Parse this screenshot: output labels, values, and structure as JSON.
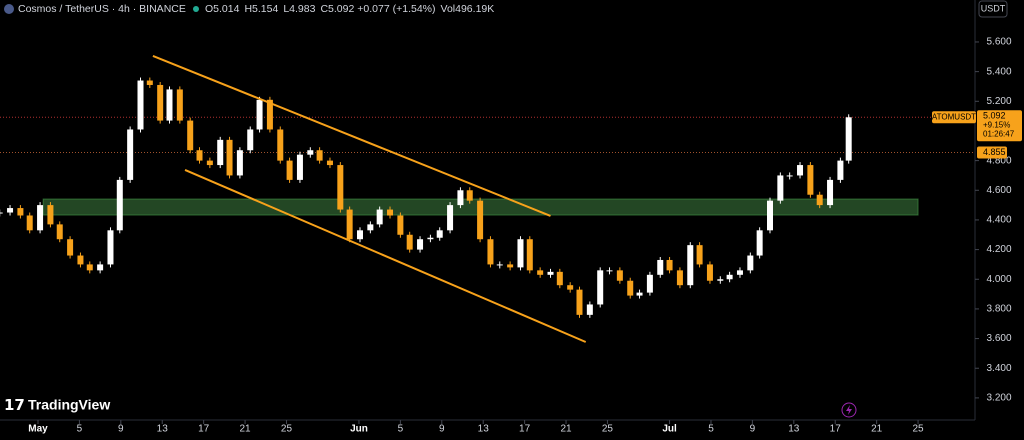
{
  "chart_data": {
    "type": "candlestick",
    "header": {
      "symbol": "Cosmos / TetherUS · 4h · BINANCE",
      "legend": [
        "O5.014",
        "H5.154",
        "L4.983",
        "C5.092",
        "+0.077 (+1.54%)",
        "Vol496.19K"
      ]
    },
    "currency": "USDT",
    "brand": "TradingView",
    "xlim": [
      -2.67,
      91.5
    ],
    "ylim": [
      3.051,
      5.883
    ],
    "xticks": [
      {
        "value": 1,
        "label": "May"
      },
      {
        "value": 5,
        "label": "5"
      },
      {
        "value": 9,
        "label": "9"
      },
      {
        "value": 13,
        "label": "13"
      },
      {
        "value": 17,
        "label": "17"
      },
      {
        "value": 21,
        "label": "21"
      },
      {
        "value": 25,
        "label": "25"
      },
      {
        "value": 32,
        "label": "Jun"
      },
      {
        "value": 36,
        "label": "5"
      },
      {
        "value": 40,
        "label": "9"
      },
      {
        "value": 44,
        "label": "13"
      },
      {
        "value": 48,
        "label": "17"
      },
      {
        "value": 52,
        "label": "21"
      },
      {
        "value": 56,
        "label": "25"
      },
      {
        "value": 62,
        "label": "Jul"
      },
      {
        "value": 66,
        "label": "5"
      },
      {
        "value": 70,
        "label": "9"
      },
      {
        "value": 74,
        "label": "13"
      },
      {
        "value": 78,
        "label": "17"
      },
      {
        "value": 82,
        "label": "21"
      },
      {
        "value": 86,
        "label": "25"
      }
    ],
    "yticks": [
      {
        "value": 5.6,
        "label": "5.600"
      },
      {
        "value": 5.4,
        "label": "5.400"
      },
      {
        "value": 5.2,
        "label": "5.200"
      },
      {
        "value": 4.8,
        "label": "4.800"
      },
      {
        "value": 4.6,
        "label": "4.600"
      },
      {
        "value": 4.4,
        "label": "4.400"
      },
      {
        "value": 4.2,
        "label": "4.200"
      },
      {
        "value": 4.0,
        "label": "4.000"
      },
      {
        "value": 3.8,
        "label": "3.800"
      },
      {
        "value": 3.6,
        "label": "3.600"
      },
      {
        "value": 3.4,
        "label": "3.400"
      },
      {
        "value": 3.2,
        "label": "3.200"
      }
    ],
    "series": [
      {
        "name": "ATOMUSDT",
        "up_color": "#ffffff",
        "down_color": "#f7a21b",
        "x": [
          -2.7,
          -1.7,
          -0.7,
          0.2,
          1.2,
          2.2,
          3.1,
          4.1,
          5.1,
          6.0,
          7.0,
          8.0,
          8.9,
          9.9,
          10.9,
          11.8,
          12.8,
          13.7,
          14.7,
          15.7,
          16.6,
          17.6,
          18.6,
          19.5,
          20.5,
          21.5,
          22.4,
          23.4,
          24.4,
          25.3,
          26.3,
          27.3,
          28.2,
          29.2,
          30.2,
          31.1,
          32.1,
          33.1,
          34.0,
          35.0,
          36.0,
          36.9,
          37.9,
          38.9,
          39.8,
          40.8,
          41.8,
          42.7,
          43.7,
          44.7,
          45.6,
          46.6,
          47.6,
          48.5,
          49.5,
          50.5,
          51.4,
          52.4,
          53.3,
          54.3,
          55.3,
          56.2,
          57.2,
          58.2,
          59.1,
          60.1,
          61.1,
          62.0,
          63.0,
          64.0,
          64.9,
          65.9,
          66.9,
          67.8,
          68.8,
          69.8,
          70.7,
          71.7,
          72.7,
          73.6,
          74.6,
          75.6,
          76.5,
          77.5,
          78.5,
          79.3
        ],
        "values": [
          4.45,
          4.48,
          4.43,
          4.33,
          4.5,
          4.37,
          4.27,
          4.16,
          4.1,
          4.06,
          4.1,
          4.33,
          4.67,
          5.01,
          5.34,
          5.31,
          5.07,
          5.28,
          5.07,
          4.87,
          4.8,
          4.77,
          4.94,
          4.7,
          4.87,
          5.01,
          5.21,
          5.01,
          4.8,
          4.67,
          4.84,
          4.87,
          4.8,
          4.77,
          4.47,
          4.27,
          4.33,
          4.37,
          4.47,
          4.43,
          4.3,
          4.2,
          4.27,
          4.28,
          4.33,
          4.5,
          4.6,
          4.53,
          4.27,
          4.1,
          4.1,
          4.08,
          4.27,
          4.06,
          4.03,
          4.05,
          3.96,
          3.93,
          3.76,
          3.83,
          4.06,
          4.06,
          3.99,
          3.89,
          3.91,
          4.03,
          4.13,
          4.06,
          3.96,
          4.23,
          4.1,
          3.99,
          4.0,
          4.03,
          4.06,
          4.16,
          4.33,
          4.53,
          4.7,
          4.7,
          4.77,
          4.57,
          4.5,
          4.67,
          4.8,
          5.092
        ]
      }
    ],
    "trendlines": [
      {
        "color": "#f7a21b",
        "x": [
          12.1,
          50.5
        ],
        "y": [
          5.506,
          4.427
        ]
      },
      {
        "color": "#f7a21b",
        "x": [
          15.2,
          53.9
        ],
        "y": [
          4.737,
          3.577
        ]
      }
    ],
    "zones": [
      {
        "color": "#2f5f30",
        "border": "#4caf50",
        "x": [
          1.5,
          86.0
        ],
        "y": [
          4.433,
          4.541
        ]
      }
    ],
    "price_lines": [
      {
        "name": "ATOMUSDT",
        "value": 5.092,
        "change": "+9.15%",
        "countdown": "01:26:47",
        "color": "#f7a21b",
        "line_color": "#b03030"
      },
      {
        "value": 4.855,
        "color": "#f7a21b",
        "line_color": "#a0522d"
      }
    ]
  }
}
